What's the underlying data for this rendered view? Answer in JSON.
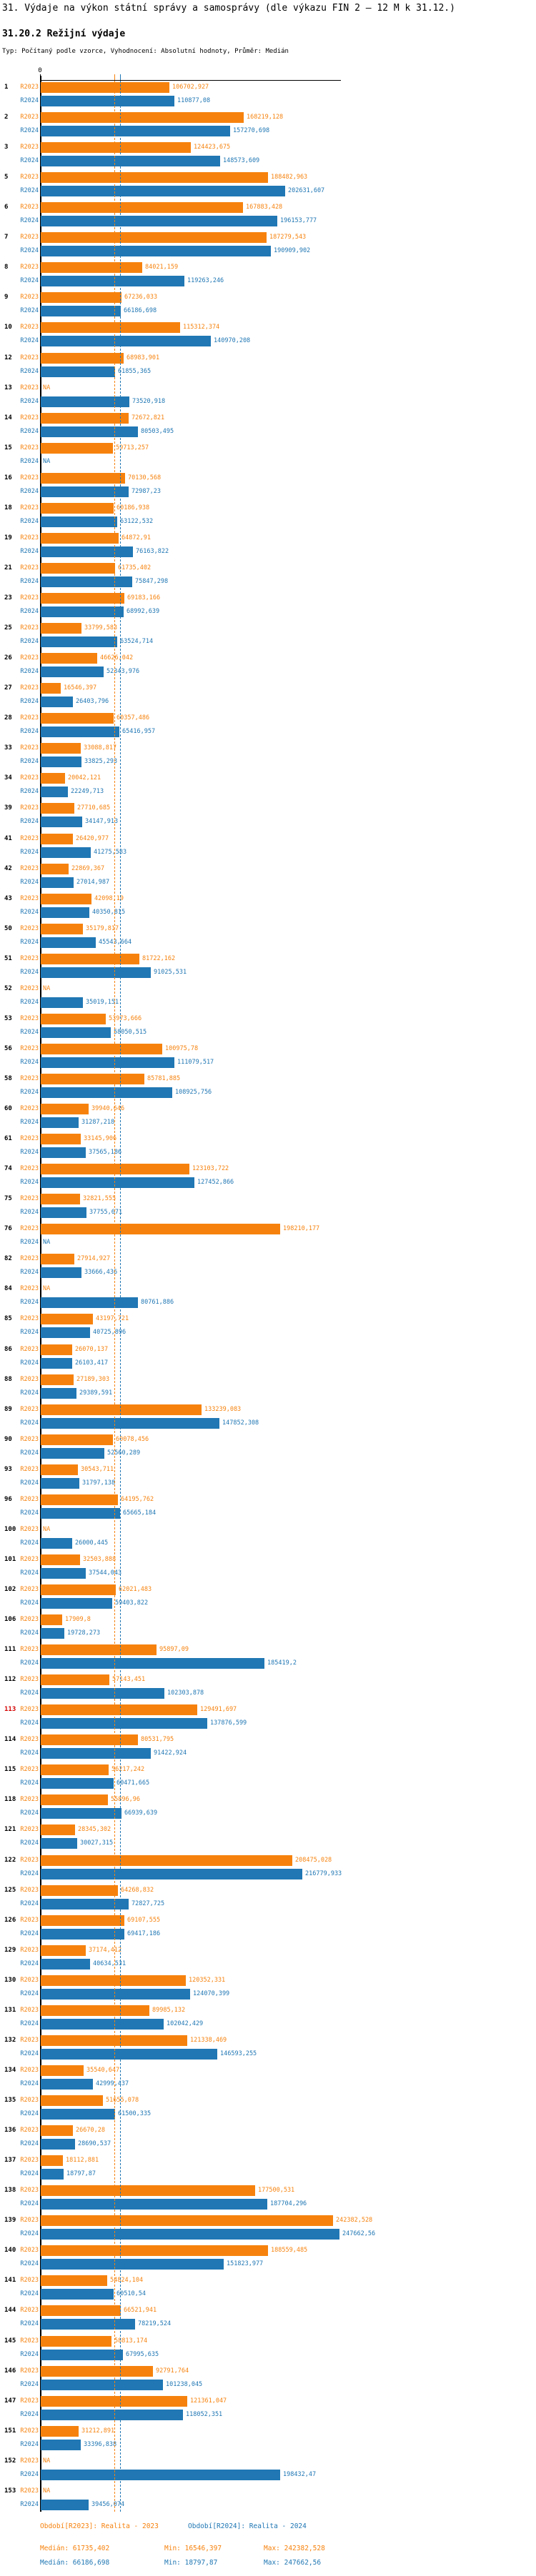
{
  "title": "31. Výdaje na výkon státní správy a samosprávy (dle výkazu FIN 2 – 12 M k 31.12.)",
  "subtitle": "31.20.2 Režijní výdaje",
  "meta": "Typ: Počítaný podle vzorce, Vyhodnocení: Absolutní hodnoty, Průměr: Medián",
  "legend": {
    "r2023": "Období[R2023]: Realita - 2023",
    "r2024": "Období[R2024]: Realita - 2024"
  },
  "stats": {
    "r2023": {
      "median": "Medián: 61735,402",
      "min": "Min: 16546,397",
      "max": "Max: 242382,528"
    },
    "r2024": {
      "median": "Medián: 66186,698",
      "min": "Min: 18797,87",
      "max": "Max: 247662,56"
    }
  },
  "chart_data": {
    "type": "bar",
    "orientation": "horizontal",
    "series": [
      "R2023",
      "R2024"
    ],
    "colors": {
      "r2023": "#f6820d",
      "r2024": "#2077b4",
      "highlight_row": "#d40000",
      "axis": "#000000"
    },
    "axis": {
      "zero_label": "0",
      "xmax": 247662.56,
      "na_text": "NA"
    },
    "medians": {
      "r2023": 61735.402,
      "r2024": 66186.698
    },
    "min": {
      "r2023": 16546.397,
      "r2024": 18797.87
    },
    "max": {
      "r2023": 242382.528,
      "r2024": 247662.56
    },
    "highlighted_ids": [
      "113"
    ],
    "rows": [
      [
        "1",
        "106702,927",
        "110877,08"
      ],
      [
        "2",
        "168219,128",
        "157270,698"
      ],
      [
        "3",
        "124423,675",
        "148573,609"
      ],
      [
        "5",
        "188482,963",
        "202631,607"
      ],
      [
        "6",
        "167883,428",
        "196153,777"
      ],
      [
        "7",
        "187279,543",
        "190909,902"
      ],
      [
        "8",
        "84021,159",
        "119263,246"
      ],
      [
        "9",
        "67236,033",
        "66186,698"
      ],
      [
        "10",
        "115312,374",
        "140970,208"
      ],
      [
        "12",
        "68983,901",
        "61855,365"
      ],
      [
        "13",
        "NA",
        "73520,918"
      ],
      [
        "14",
        "72672,821",
        "80503,495"
      ],
      [
        "15",
        "59713,257",
        "NA"
      ],
      [
        "16",
        "70130,568",
        "72987,23"
      ],
      [
        "18",
        "60186,938",
        "63122,532"
      ],
      [
        "19",
        "64872,91",
        "76163,822"
      ],
      [
        "21",
        "61735,402",
        "75847,298"
      ],
      [
        "23",
        "69183,166",
        "68992,639"
      ],
      [
        "25",
        "33799,583",
        "63524,714"
      ],
      [
        "26",
        "46626,042",
        "52343,976"
      ],
      [
        "27",
        "16546,397",
        "26403,796"
      ],
      [
        "28",
        "60357,486",
        "65416,957"
      ],
      [
        "33",
        "33088,817",
        "33825,293"
      ],
      [
        "34",
        "20042,121",
        "22249,713"
      ],
      [
        "39",
        "27710,685",
        "34147,913"
      ],
      [
        "41",
        "26420,977",
        "41275,583"
      ],
      [
        "42",
        "22869,367",
        "27014,987"
      ],
      [
        "43",
        "42098,19",
        "40350,815"
      ],
      [
        "50",
        "35179,817",
        "45543,664"
      ],
      [
        "51",
        "81722,162",
        "91025,531"
      ],
      [
        "52",
        "NA",
        "35019,151"
      ],
      [
        "53",
        "53973,666",
        "58050,515"
      ],
      [
        "56",
        "100975,78",
        "111079,517"
      ],
      [
        "58",
        "85781,885",
        "108925,756"
      ],
      [
        "60",
        "39940,646",
        "31287,218"
      ],
      [
        "61",
        "33145,906",
        "37565,186"
      ],
      [
        "74",
        "123103,722",
        "127452,866"
      ],
      [
        "75",
        "32821,555",
        "37755,671"
      ],
      [
        "76",
        "198210,177",
        "NA"
      ],
      [
        "82",
        "27914,927",
        "33666,436"
      ],
      [
        "84",
        "NA",
        "80761,886"
      ],
      [
        "85",
        "43197,721",
        "40725,896"
      ],
      [
        "86",
        "26070,137",
        "26103,417"
      ],
      [
        "88",
        "27189,303",
        "29389,591"
      ],
      [
        "89",
        "133239,083",
        "147852,308"
      ],
      [
        "90",
        "60078,456",
        "52560,289"
      ],
      [
        "93",
        "30543,711",
        "31797,138"
      ],
      [
        "96",
        "64195,762",
        "65665,184"
      ],
      [
        "100",
        "NA",
        "26000,445"
      ],
      [
        "101",
        "32503,888",
        "37544,043"
      ],
      [
        "102",
        "62021,483",
        "59403,822"
      ],
      [
        "106",
        "17909,8",
        "19728,273"
      ],
      [
        "111",
        "95897,09",
        "185419,2"
      ],
      [
        "112",
        "57143,451",
        "102303,878"
      ],
      [
        "113",
        "129491,697",
        "137876,599"
      ],
      [
        "114",
        "80531,795",
        "91422,924"
      ],
      [
        "115",
        "56217,242",
        "60471,665"
      ],
      [
        "118",
        "55896,96",
        "66939,639"
      ],
      [
        "121",
        "28345,302",
        "30027,315"
      ],
      [
        "122",
        "208475,028",
        "216779,933"
      ],
      [
        "125",
        "64268,832",
        "72827,725"
      ],
      [
        "126",
        "69107,555",
        "69417,186"
      ],
      [
        "129",
        "37174,412",
        "40634,531"
      ],
      [
        "130",
        "120352,331",
        "124070,399"
      ],
      [
        "131",
        "89985,132",
        "102042,429"
      ],
      [
        "132",
        "121338,469",
        "146593,255"
      ],
      [
        "134",
        "35540,647",
        "42999,437"
      ],
      [
        "135",
        "51655,078",
        "61500,335"
      ],
      [
        "136",
        "26670,28",
        "28690,537"
      ],
      [
        "137",
        "18112,881",
        "18797,87"
      ],
      [
        "138",
        "177500,531",
        "187704,296"
      ],
      [
        "139",
        "242382,528",
        "247662,56"
      ],
      [
        "140",
        "188559,485",
        "151823,977"
      ],
      [
        "141",
        "54824,104",
        "60510,54"
      ],
      [
        "144",
        "66521,941",
        "78219,524"
      ],
      [
        "145",
        "58813,174",
        "67995,635"
      ],
      [
        "146",
        "92791,764",
        "101238,045"
      ],
      [
        "147",
        "121361,047",
        "118052,351"
      ],
      [
        "151",
        "31212,891",
        "33396,838"
      ],
      [
        "152",
        "NA",
        "198432,47"
      ],
      [
        "153",
        "NA",
        "39456,074"
      ]
    ]
  }
}
